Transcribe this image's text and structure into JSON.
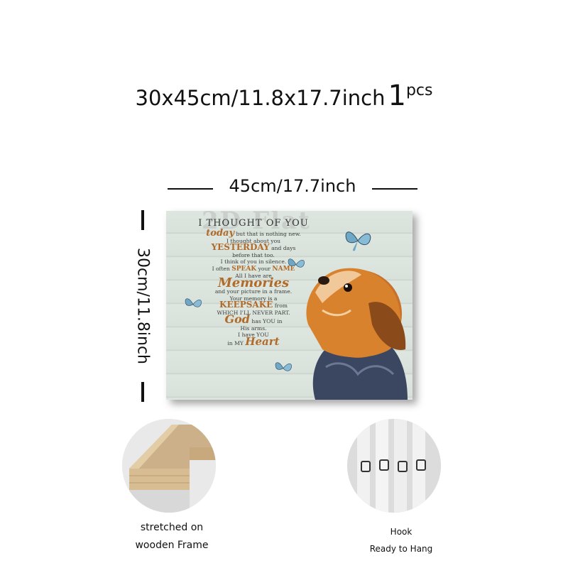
{
  "title": {
    "size": "30x45cm/11.8x17.7inch",
    "quantity": "1",
    "unit": "pcs"
  },
  "width_label": "45cm/17.7inch",
  "height_label": "30cm/11.8inch",
  "canvas": {
    "watermark": "2D Flat",
    "poem": {
      "heading": "I THOUGHT OF YOU",
      "line1_big": "today",
      "line1_rest": "but that is nothing new.",
      "line2": "I thought about you",
      "line3_big": "YESTERDAY",
      "line3_rest": "and days",
      "line4": "before that too.",
      "line5": "I think of you in silence.",
      "line6_pre": "I often",
      "line6_big1": "SPEAK",
      "line6_mid": "your",
      "line6_big2": "NAME",
      "line7": "All I have are",
      "line8_big": "Memories",
      "line9": "and your picture in a frame.",
      "line10": "Your memory is a",
      "line11_big": "KEEPSAKE",
      "line11_rest": "from",
      "line12": "WHICH I'LL NEVER PART.",
      "line13_big": "God",
      "line13_rest": "has YOU in",
      "line14": "His arms.",
      "line15": "I have YOU",
      "line16_pre": "in MY",
      "line16_big": "Heart"
    }
  },
  "features": [
    {
      "caption_line1": "stretched on",
      "caption_line2": "wooden Frame"
    },
    {
      "caption_line1": "Hook",
      "caption_line2": "Ready to Hang"
    }
  ],
  "colors": {
    "accent_text": "#b06a2a",
    "butterfly": "#6fa7c4"
  }
}
